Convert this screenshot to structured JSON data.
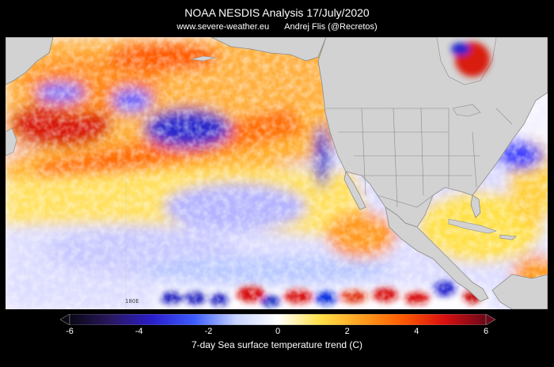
{
  "title": "NOAA NESDIS Analysis   17/July/2020",
  "website": "www.severe-weather.eu",
  "author": "Andrej Flis (@Recretos)",
  "map": {
    "meridian_label": "180E",
    "land_color": "#d2d2d2",
    "border_color": "#8a8a8a"
  },
  "colorbar": {
    "label": "7-day Sea surface temperature trend (C)",
    "ticks": [
      "-6",
      "-4",
      "-2",
      "0",
      "2",
      "4",
      "6"
    ],
    "min": -6,
    "max": 6,
    "colors": [
      "#0a0814",
      "#2a1860",
      "#2a1ecc",
      "#3c5cff",
      "#c8d4ff",
      "#ffffff",
      "#ffe04a",
      "#ffa020",
      "#ff5a00",
      "#d81010",
      "#6a0818"
    ]
  }
}
